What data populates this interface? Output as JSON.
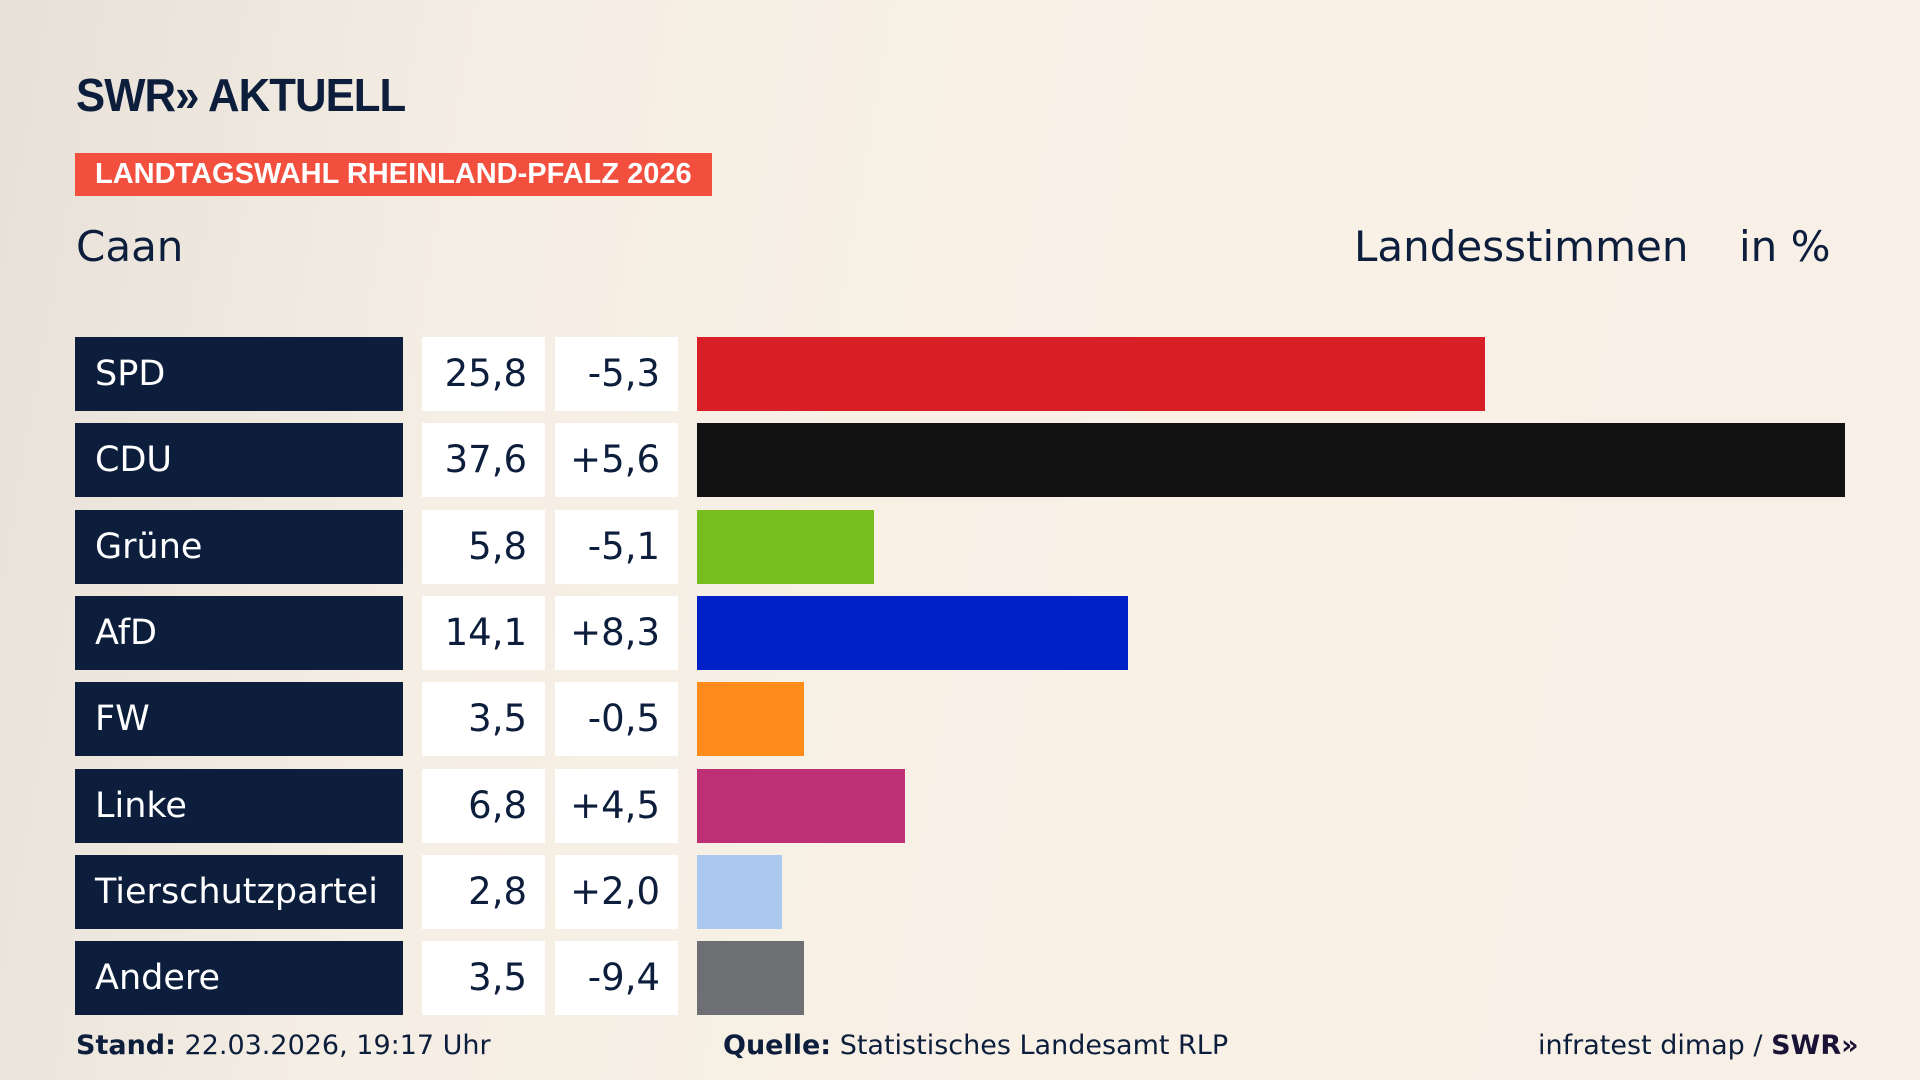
{
  "header": {
    "logo": "SWR» AKTUELL",
    "banner": "LANDTAGSWAHL RHEINLAND-PFALZ 2026",
    "subtitle": "Caan",
    "measure": "Landesstimmen",
    "unit": "in %"
  },
  "chart_data": {
    "type": "bar",
    "orientation": "horizontal",
    "categories": [
      "SPD",
      "CDU",
      "Grüne",
      "AfD",
      "FW",
      "Linke",
      "Tierschutzpartei",
      "Andere"
    ],
    "values": [
      25.8,
      37.6,
      5.8,
      14.1,
      3.5,
      6.8,
      2.8,
      3.5
    ],
    "values_label": [
      "25,8",
      "37,6",
      "5,8",
      "14,1",
      "3,5",
      "6,8",
      "2,8",
      "3,5"
    ],
    "change_label": [
      "-5,3",
      "+5,6",
      "-5,1",
      "+8,3",
      "-0,5",
      "+4,5",
      "+2,0",
      "-9,4"
    ],
    "colors": [
      "#d81f25",
      "#121212",
      "#78bd1e",
      "#0021c8",
      "#ff8c1a",
      "#be3075",
      "#abc9ef",
      "#6e6f72"
    ],
    "xlim": [
      0,
      37.6
    ]
  },
  "footer": {
    "stand_label": "Stand:",
    "stand_value": "22.03.2026, 19:17 Uhr",
    "quelle_label": "Quelle:",
    "quelle_value": "Statistisches Landesamt RLP",
    "credit": "infratest dimap / ",
    "credit_logo": "SWR»"
  }
}
